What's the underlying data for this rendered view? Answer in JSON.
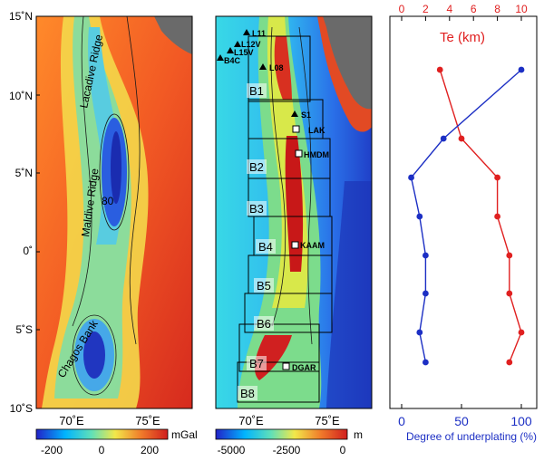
{
  "latitude_labels": [
    "15˚N",
    "10˚N",
    "5˚N",
    "0˚",
    "5˚S",
    "10˚S"
  ],
  "longitude_labels": [
    "70˚E",
    "75˚E"
  ],
  "left_map": {
    "features": [
      "Lacadive Ridge",
      "Maldive Ridge",
      "Chagos Bank"
    ],
    "contour_label": "80",
    "colorbar": {
      "ticks": [
        "-200",
        "0",
        "200"
      ],
      "unit": "mGal"
    }
  },
  "middle_map": {
    "boxes": [
      "B1",
      "B2",
      "B3",
      "B4",
      "B5",
      "B6",
      "B7",
      "B8"
    ],
    "triangle_stations": [
      "L11",
      "L12V",
      "L15V",
      "B4C",
      "L08",
      "S1"
    ],
    "square_stations": [
      "LAK",
      "HMDM",
      "KAAM",
      "DGAR"
    ],
    "colorbar": {
      "ticks": [
        "-5000",
        "-2500",
        "0"
      ],
      "unit": "m"
    }
  },
  "profile_chart": {
    "top_axis": {
      "title": "Te (km)",
      "ticks": [
        "0",
        "2",
        "4",
        "6",
        "8",
        "10"
      ],
      "color": "#e02020"
    },
    "bottom_axis": {
      "title": "Degree of underplating (%)",
      "ticks": [
        "0",
        "50",
        "100"
      ],
      "color": "#1c2fc4"
    }
  },
  "chart_data": {
    "type": "line",
    "y_axis": "latitude (box centres, top to bottom)",
    "series": [
      {
        "name": "Te (km)",
        "color": "#e02020",
        "axis": "top",
        "xlim": [
          0,
          10
        ],
        "values": [
          3.2,
          5.0,
          8.0,
          8.0,
          9.0,
          9.0,
          10.0,
          9.0
        ]
      },
      {
        "name": "Degree of underplating (%)",
        "color": "#1c2fc4",
        "axis": "bottom",
        "xlim": [
          0,
          100
        ],
        "values": [
          100,
          35,
          8,
          15,
          20,
          20,
          15,
          20
        ]
      }
    ],
    "levels_top_to_bottom": [
      "B1",
      "B2",
      "B3",
      "B4",
      "B5",
      "B6",
      "B7",
      "B8"
    ]
  }
}
